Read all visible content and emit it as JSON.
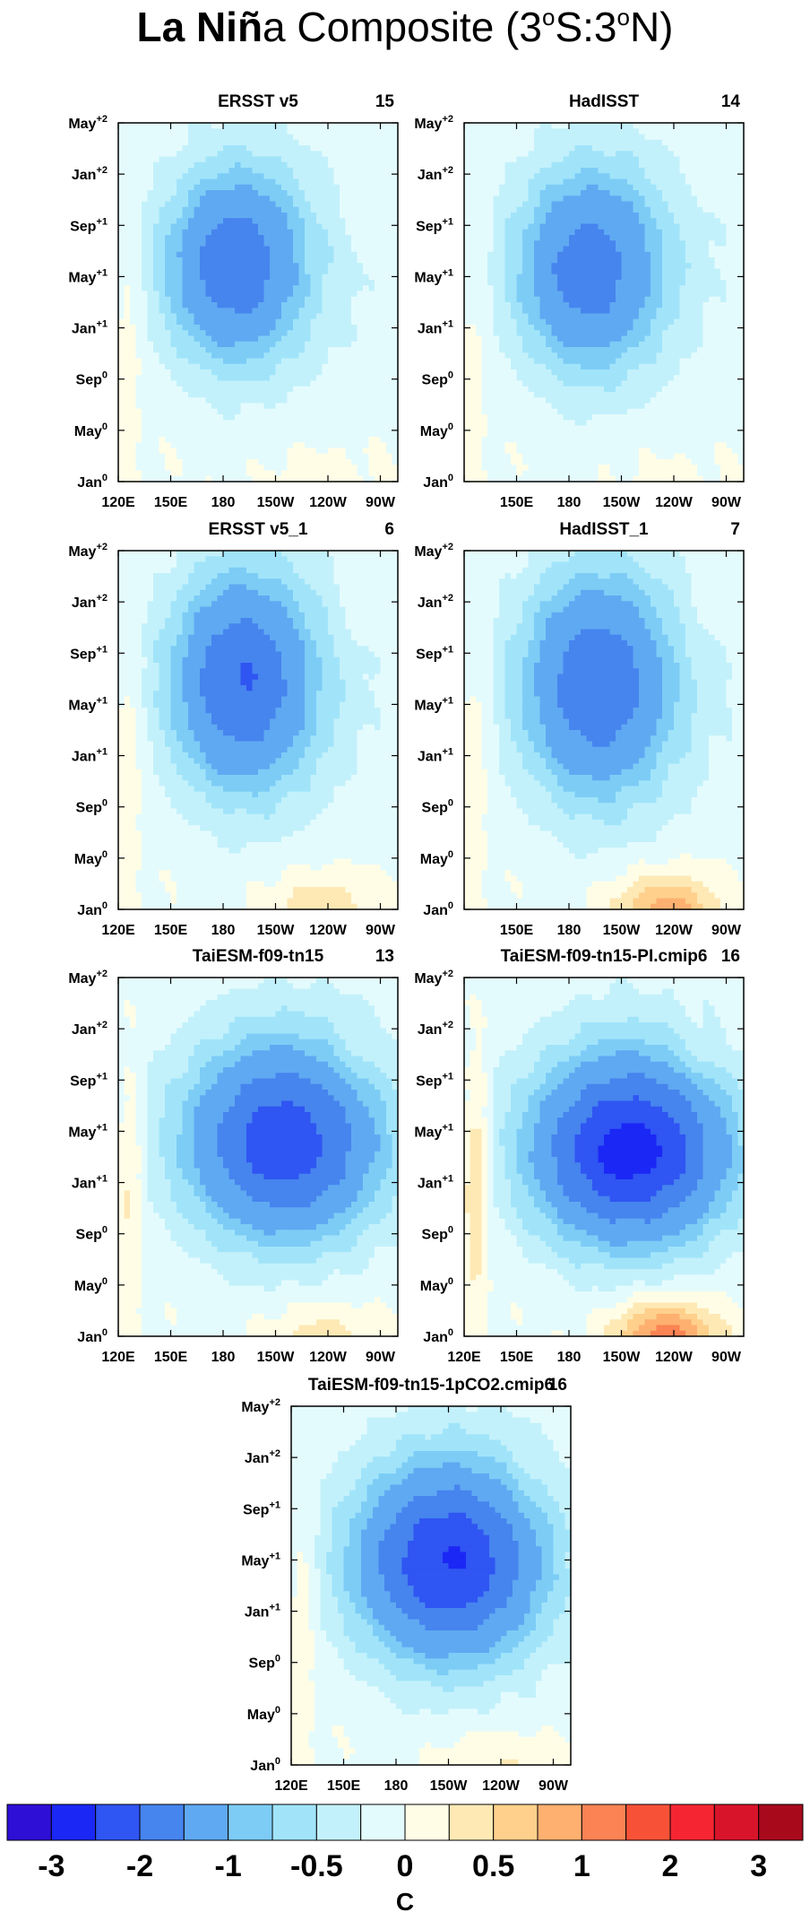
{
  "figure": {
    "title_bold": "La Niñ",
    "title_rest": "a Composite (3",
    "title_sup1": "o",
    "title_mid": "S:3",
    "title_sup2": "o",
    "title_end": "N)",
    "colorbar_unit": "C"
  },
  "chart_data": {
    "type": "heatmap",
    "x_tick_labels": [
      "120E",
      "150E",
      "180",
      "150W",
      "120W",
      "90W"
    ],
    "y_tick_labels": [
      {
        "base": "May",
        "sup": "+2"
      },
      {
        "base": "Jan",
        "sup": "+2"
      },
      {
        "base": "Sep",
        "sup": "+1"
      },
      {
        "base": "May",
        "sup": "+1"
      },
      {
        "base": "Jan",
        "sup": "+1"
      },
      {
        "base": "Sep",
        "sup": "0"
      },
      {
        "base": "May",
        "sup": "0"
      },
      {
        "base": "Jan",
        "sup": "0"
      }
    ],
    "colorbar": {
      "colors": [
        "#2e0fd6",
        "#1b27f5",
        "#2f55f2",
        "#4684ee",
        "#5fa9f2",
        "#7dccf6",
        "#a1e4fa",
        "#c3f1fb",
        "#e4fbfd",
        "#fffde6",
        "#fee9b5",
        "#fed08b",
        "#fdb070",
        "#fb8354",
        "#f75237",
        "#f52632",
        "#d8142a",
        "#a80a1c"
      ],
      "tick_labels": [
        "-3",
        "-2",
        "-1",
        "-0.5",
        "0",
        "0.5",
        "1",
        "2",
        "3"
      ]
    },
    "panels": [
      {
        "title": "ERSST v5",
        "count": "15",
        "show_120E": true,
        "center": [
          185,
          9.6
        ],
        "radius": [
          38,
          4.2
        ],
        "peak": -1.6,
        "warm_west": 0.25,
        "warm_east": 0.15,
        "spring_warm": 0.1
      },
      {
        "title": "HadISST",
        "count": "14",
        "show_120E": false,
        "center": [
          190,
          9.4
        ],
        "radius": [
          40,
          4.4
        ],
        "peak": -1.5,
        "warm_west": 0.2,
        "warm_east": 0.1,
        "spring_warm": 0.05
      },
      {
        "title": "ERSST v5_1",
        "count": "6",
        "show_120E": true,
        "center": [
          190,
          10.2
        ],
        "radius": [
          40,
          4.8
        ],
        "peak": -1.7,
        "warm_west": 0.3,
        "warm_east": 0.5,
        "spring_warm": 0.1
      },
      {
        "title": "HadISST_1",
        "count": "7",
        "show_120E": false,
        "center": [
          195,
          10.0
        ],
        "radius": [
          42,
          5.0
        ],
        "peak": -1.6,
        "warm_west": 0.3,
        "warm_east": 0.9,
        "spring_warm": 0.1
      },
      {
        "title": "TaiESM-f09-tn15",
        "count": "13",
        "show_120E": true,
        "center": [
          215,
          8.6
        ],
        "radius": [
          55,
          4.2
        ],
        "peak": -2.0,
        "warm_west": 0.45,
        "warm_east": 0.4,
        "spring_warm": 0.2
      },
      {
        "title": "TaiESM-f09-tn15-PI.cmip6",
        "count": "16",
        "show_120E": true,
        "center": [
          215,
          8.2
        ],
        "radius": [
          55,
          4.0
        ],
        "peak": -2.4,
        "warm_west": 0.7,
        "warm_east": 1.2,
        "spring_warm": 0.2
      },
      {
        "title": "TaiESM-f09-tn15-1pCO2.cmip6",
        "count": "16",
        "show_120E": true,
        "center": [
          210,
          9.0
        ],
        "radius": [
          52,
          4.2
        ],
        "peak": -2.2,
        "warm_west": 0.35,
        "warm_east": 0.3,
        "spring_warm": 0.1
      }
    ]
  }
}
